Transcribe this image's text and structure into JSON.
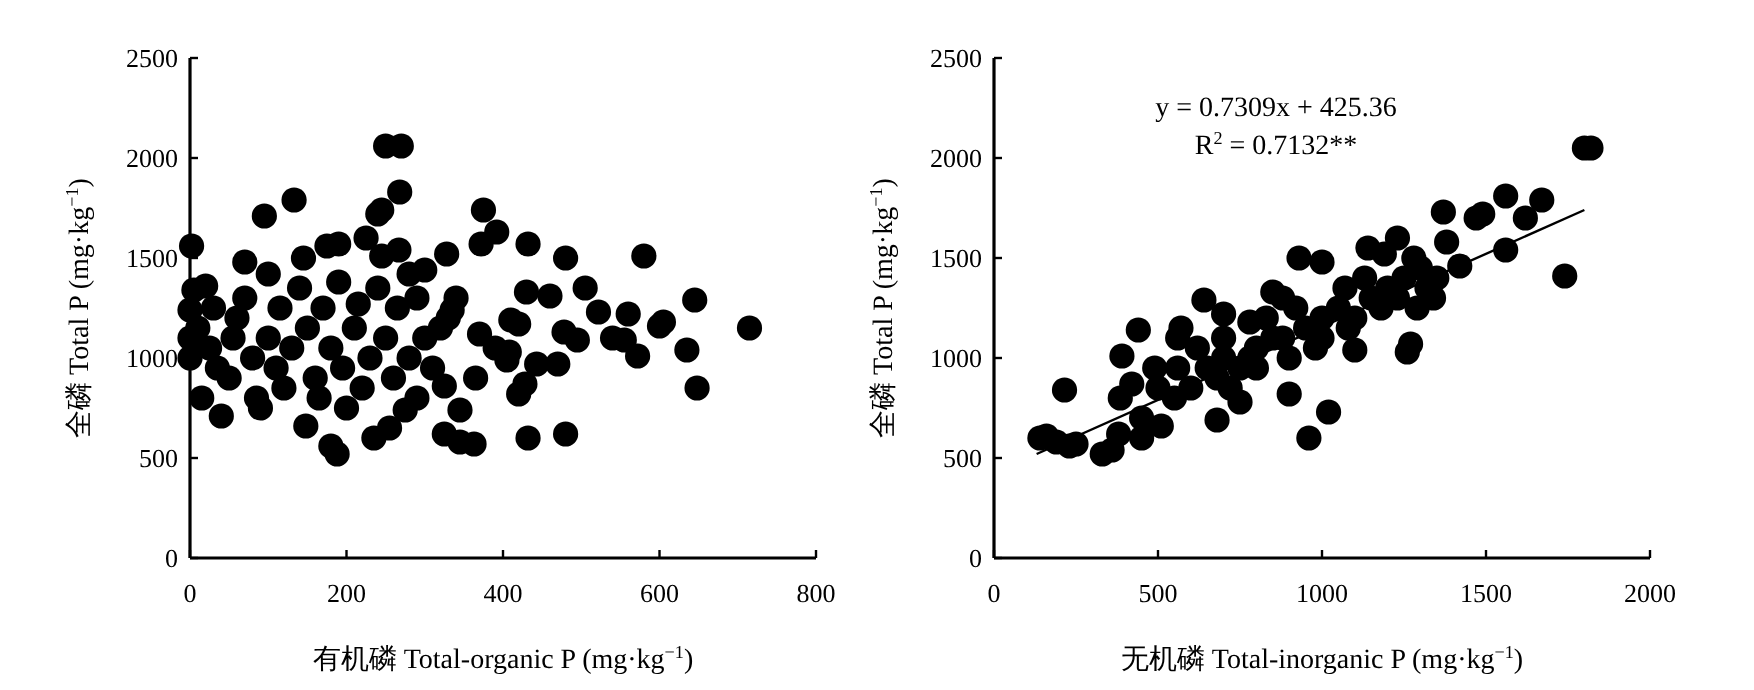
{
  "chart_data": [
    {
      "type": "scatter",
      "xlabel": "有机磷 Total-organic P (mg·kg$^{−1}$)",
      "ylabel": "全磷 Total P (mg·kg$^{−1}$)",
      "xlim": [
        0,
        800
      ],
      "xticks": [
        0,
        200,
        400,
        600,
        800
      ],
      "ylim": [
        0,
        2500
      ],
      "yticks": [
        0,
        500,
        1000,
        1500,
        2000,
        2500
      ],
      "series": [
        {
          "marker": "circle",
          "color": "#000000",
          "x": [
            250,
            270,
            268,
            240,
            245,
            95,
            133,
            2,
            375,
            392,
            372,
            432,
            328,
            480,
            580,
            175,
            190,
            225,
            245,
            267,
            300,
            280,
            430,
            460,
            505,
            645,
            522,
            560,
            605,
            600,
            410,
            420,
            478,
            715,
            540,
            555,
            495,
            408,
            405,
            443,
            470,
            572,
            635,
            648,
            428,
            420,
            345,
            325,
            345,
            363,
            432,
            480,
            188,
            180,
            235,
            255,
            148,
            40,
            15,
            340,
            335,
            330,
            370,
            390,
            365,
            325,
            290,
            275,
            0,
            0,
            0,
            5,
            20,
            30,
            10,
            25,
            35,
            50,
            55,
            60,
            70,
            70,
            80,
            85,
            90,
            100,
            100,
            110,
            115,
            120,
            130,
            140,
            145,
            150,
            160,
            165,
            170,
            180,
            190,
            195,
            200,
            210,
            215,
            220,
            230,
            240,
            250,
            260,
            265,
            280,
            290,
            300,
            310,
            320
          ],
          "values": [
            2060,
            2060,
            1830,
            1720,
            1740,
            1710,
            1790,
            1560,
            1740,
            1630,
            1570,
            1570,
            1520,
            1500,
            1510,
            1560,
            1570,
            1600,
            1510,
            1540,
            1440,
            1420,
            1330,
            1310,
            1350,
            1290,
            1230,
            1220,
            1180,
            1160,
            1190,
            1170,
            1130,
            1150,
            1100,
            1090,
            1090,
            1030,
            990,
            970,
            970,
            1010,
            1040,
            850,
            870,
            820,
            740,
            620,
            580,
            570,
            600,
            620,
            520,
            560,
            600,
            650,
            660,
            710,
            800,
            1300,
            1240,
            1200,
            1120,
            1050,
            900,
            860,
            800,
            740,
            1000,
            1100,
            1240,
            1340,
            1360,
            1250,
            1150,
            1050,
            950,
            900,
            1100,
            1200,
            1300,
            1480,
            1000,
            800,
            750,
            1420,
            1100,
            950,
            1250,
            850,
            1050,
            1350,
            1500,
            1150,
            900,
            800,
            1250,
            1050,
            1380,
            950,
            750,
            1150,
            1270,
            850,
            1000,
            1350,
            1100,
            900,
            1250,
            1000,
            1300,
            1100,
            950,
            1150
          ]
        }
      ]
    },
    {
      "type": "scatter",
      "xlabel": "无机磷 Total-inorganic P (mg·kg$^{−1}$)",
      "ylabel": "全磷 Total P (mg·kg$^{−1}$)",
      "xlim": [
        0,
        2000
      ],
      "xticks": [
        0,
        500,
        1000,
        1500,
        2000
      ],
      "ylim": [
        0,
        2500
      ],
      "yticks": [
        0,
        500,
        1000,
        1500,
        2000,
        2500
      ],
      "annotations": [
        "y = 0.7309x + 425.36",
        "R$^{2}$ = 0.7132**"
      ],
      "series": [
        {
          "marker": "circle",
          "color": "#000000",
          "x": [
            140,
            160,
            190,
            215,
            230,
            250,
            330,
            360,
            380,
            385,
            390,
            420,
            440,
            450,
            450,
            490,
            510,
            560,
            570,
            640,
            680,
            700,
            720,
            750,
            780,
            800,
            850,
            880,
            900,
            930,
            960,
            1000,
            1020,
            1070,
            1100,
            1140,
            1190,
            1230,
            1260,
            1270,
            1290,
            1340,
            1370,
            1380,
            1420,
            1470,
            1490,
            1560,
            1560,
            1620,
            1670,
            1740,
            1800,
            1820,
            600,
            650,
            700,
            750,
            800,
            850,
            900,
            950,
            1000,
            1000,
            1050,
            1100,
            1150,
            1200,
            1250,
            1300,
            1350,
            550,
            500,
            620,
            680,
            780,
            830,
            920,
            980,
            1080,
            1130,
            1180,
            1230,
            1280,
            1320,
            560,
            700,
            880
          ],
          "values": [
            600,
            610,
            580,
            840,
            560,
            570,
            520,
            540,
            620,
            800,
            1010,
            870,
            1140,
            600,
            700,
            950,
            660,
            1100,
            1150,
            1290,
            690,
            1220,
            850,
            780,
            1180,
            950,
            1330,
            1300,
            820,
            1500,
            600,
            1480,
            730,
            1350,
            1040,
            1550,
            1520,
            1600,
            1030,
            1070,
            1250,
            1300,
            1730,
            1580,
            1460,
            1700,
            1720,
            1810,
            1540,
            1700,
            1790,
            1410,
            2050,
            2050,
            850,
            950,
            1000,
            950,
            1050,
            1100,
            1000,
            1150,
            1100,
            1200,
            1250,
            1200,
            1300,
            1350,
            1400,
            1450,
            1400,
            800,
            850,
            1050,
            900,
            1000,
            1200,
            1250,
            1050,
            1150,
            1400,
            1250,
            1300,
            1500,
            1350,
            950,
            1100,
            1100
          ]
        },
        {
          "type": "line",
          "color": "#000000",
          "x": [
            130,
            1800
          ],
          "values": [
            520,
            1740
          ]
        }
      ]
    }
  ]
}
